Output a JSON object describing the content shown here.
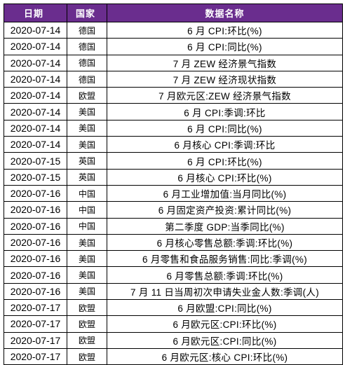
{
  "table": {
    "headers": {
      "date": "日期",
      "country": "国家",
      "name": "数据名称"
    },
    "header_bg": "#6a2d8e",
    "rows": [
      {
        "date": "2020-07-14",
        "country": "德国",
        "name": "6 月 CPI:环比(%)"
      },
      {
        "date": "2020-07-14",
        "country": "德国",
        "name": "6 月 CPI:同比(%)"
      },
      {
        "date": "2020-07-14",
        "country": "德国",
        "name": "7 月 ZEW 经济景气指数"
      },
      {
        "date": "2020-07-14",
        "country": "德国",
        "name": "7 月 ZEW 经济现状指数"
      },
      {
        "date": "2020-07-14",
        "country": "欧盟",
        "name": "7 月欧元区:ZEW 经济景气指数"
      },
      {
        "date": "2020-07-14",
        "country": "美国",
        "name": "6 月 CPI:季调:环比"
      },
      {
        "date": "2020-07-14",
        "country": "美国",
        "name": "6 月 CPI:同比(%)"
      },
      {
        "date": "2020-07-14",
        "country": "美国",
        "name": "6 月核心 CPI:季调:环比"
      },
      {
        "date": "2020-07-15",
        "country": "英国",
        "name": "6 月 CPI:环比(%)"
      },
      {
        "date": "2020-07-15",
        "country": "英国",
        "name": "6 月核心 CPI:环比(%)"
      },
      {
        "date": "2020-07-16",
        "country": "中国",
        "name": "6 月工业增加值:当月同比(%)"
      },
      {
        "date": "2020-07-16",
        "country": "中国",
        "name": "6 月固定资产投资:累计同比(%)"
      },
      {
        "date": "2020-07-16",
        "country": "中国",
        "name": "第二季度 GDP:当季同比(%)"
      },
      {
        "date": "2020-07-16",
        "country": "美国",
        "name": "6 月核心零售总额:季调:环比(%)"
      },
      {
        "date": "2020-07-16",
        "country": "美国",
        "name": "6 月零售和食品服务销售:同比:季调(%)"
      },
      {
        "date": "2020-07-16",
        "country": "美国",
        "name": "6 月零售总额:季调:环比(%)"
      },
      {
        "date": "2020-07-16",
        "country": "美国",
        "name": "7 月 11 日当周初次申请失业金人数:季调(人)"
      },
      {
        "date": "2020-07-17",
        "country": "欧盟",
        "name": "6 月欧盟:CPI:同比(%)"
      },
      {
        "date": "2020-07-17",
        "country": "欧盟",
        "name": "6 月欧元区:CPI:环比(%)"
      },
      {
        "date": "2020-07-17",
        "country": "欧盟",
        "name": "6 月欧元区:CPI:同比(%)"
      },
      {
        "date": "2020-07-17",
        "country": "欧盟",
        "name": "6 月欧元区:核心 CPI:环比(%)"
      }
    ]
  }
}
